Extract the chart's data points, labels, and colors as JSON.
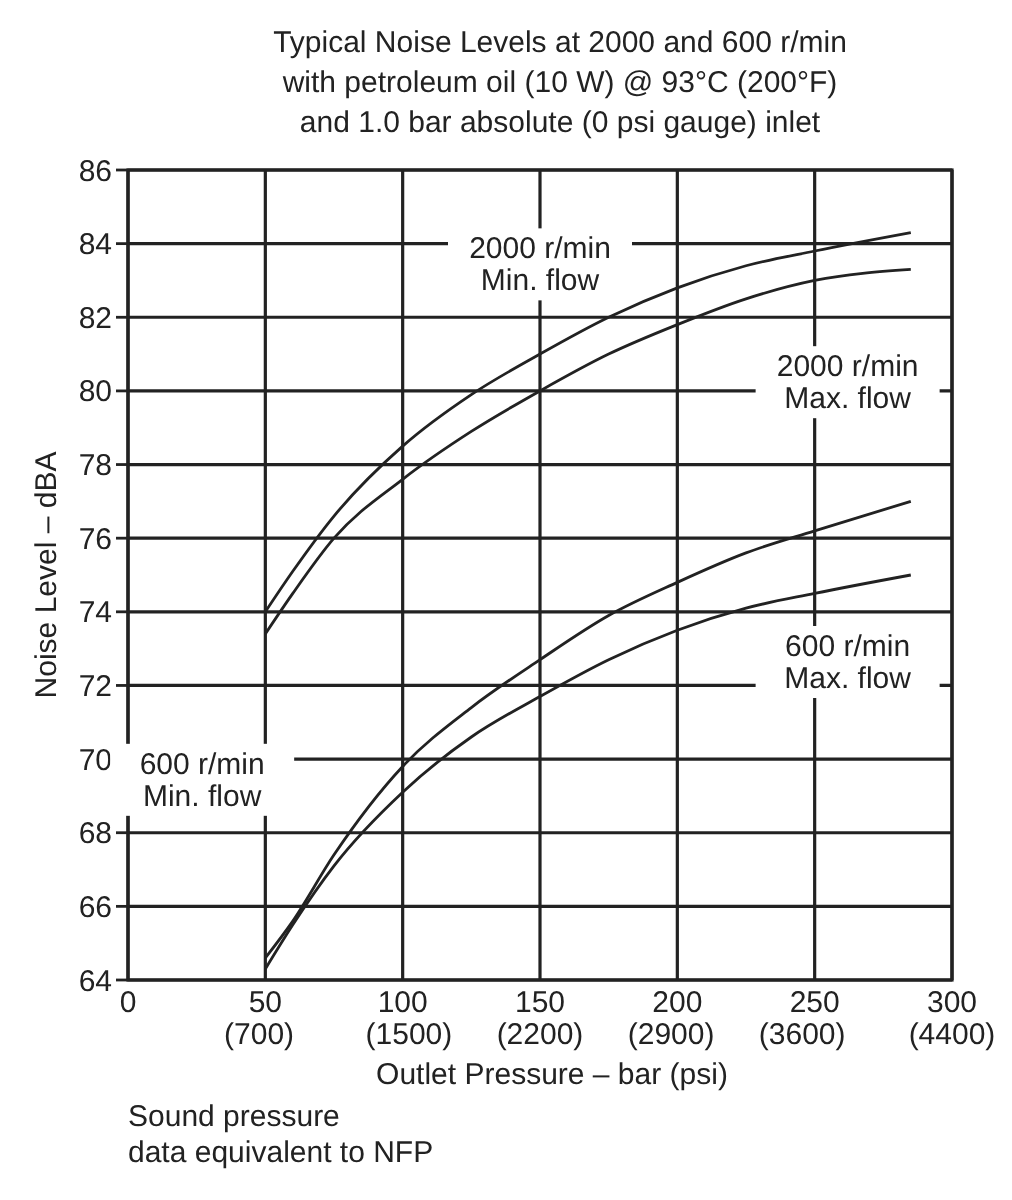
{
  "chart_data": {
    "type": "line",
    "title": "Typical Noise Levels at 2000 and 600 r/min\nwith petroleum oil (10 W) @ 93°C (200°F)\nand 1.0 bar absolute (0 psi gauge) inlet",
    "xlabel": "Outlet Pressure – bar (psi)",
    "ylabel": "Noise Level – dBA",
    "annotations": [
      "Sound pressure\ndata equivalent to NFP"
    ],
    "x": [
      50,
      60,
      75,
      100,
      125,
      150,
      175,
      200,
      225,
      250,
      285
    ],
    "series": [
      {
        "name": "2000 r/min\nMin. flow",
        "color": "#222222",
        "values": [
          74,
          75.1,
          76.6,
          78.5,
          79.9,
          81,
          82,
          82.8,
          83.4,
          83.8,
          84.3
        ]
      },
      {
        "name": "2000 r/min\nMax. flow",
        "color": "#222222",
        "values": [
          73.4,
          74.5,
          76,
          77.6,
          78.9,
          80,
          81,
          81.8,
          82.5,
          83,
          83.3
        ]
      },
      {
        "name": "600 r/min\nMin. flow",
        "color": "#222222",
        "values": [
          64.6,
          65.6,
          67.4,
          69.8,
          71.4,
          72.7,
          73.9,
          74.8,
          75.6,
          76.2,
          77
        ]
      },
      {
        "name": "600 r/min\nMax. flow",
        "color": "#222222",
        "values": [
          64.3,
          65.5,
          67.1,
          69.1,
          70.6,
          71.7,
          72.7,
          73.5,
          74.1,
          74.5,
          75
        ]
      }
    ],
    "xlim": [
      0,
      300
    ],
    "xticks": [
      0,
      50,
      100,
      150,
      200,
      250,
      300
    ],
    "x2lim": [
      0,
      4400
    ],
    "x2ticks": [
      {
        "value": 700,
        "label": "(700)"
      },
      {
        "value": 1500,
        "label": "(1500)"
      },
      {
        "value": 2200,
        "label": "(2200)"
      },
      {
        "value": 2900,
        "label": "(2900)"
      },
      {
        "value": 3600,
        "label": "(3600)"
      },
      {
        "value": 4400,
        "label": "(4400)"
      }
    ],
    "ylim": [
      64,
      86
    ],
    "yticks": [
      64,
      66,
      68,
      70,
      72,
      74,
      76,
      78,
      80,
      82,
      84,
      86
    ],
    "grid": true,
    "marker": "none",
    "line_style": "solid"
  }
}
